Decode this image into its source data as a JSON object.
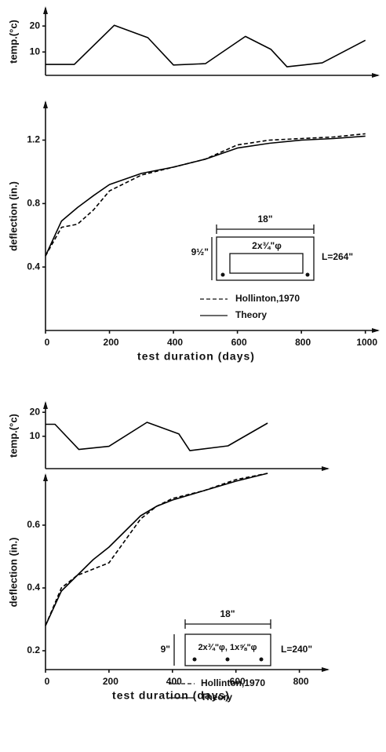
{
  "chart_data": [
    {
      "type": "line",
      "ylabel": "temp.(°c)",
      "x": [
        0,
        90,
        215,
        320,
        400,
        500,
        625,
        705,
        755,
        865,
        1000
      ],
      "values": [
        5.2,
        5.2,
        20.3,
        15.5,
        5,
        5.5,
        16,
        11,
        4.3,
        5.8,
        14.5
      ],
      "color": "#000000",
      "xlim": [
        0,
        1040
      ],
      "ylim": [
        1,
        27
      ],
      "yticks": [
        10,
        20
      ]
    },
    {
      "type": "line",
      "xlabel": "test duration (days)",
      "ylabel": "deflection (in.)",
      "x": [
        0,
        50,
        100,
        150,
        200,
        300,
        400,
        500,
        600,
        700,
        800,
        900,
        1000
      ],
      "series": [
        {
          "name": "Hollinton,1970",
          "color": "#000000",
          "style": "dashed",
          "values": [
            0.47,
            0.65,
            0.67,
            0.76,
            0.88,
            0.98,
            1.03,
            1.08,
            1.17,
            1.2,
            1.21,
            1.22,
            1.24
          ]
        },
        {
          "name": "Theory",
          "color": "#000000",
          "style": "solid",
          "values": [
            0.47,
            0.69,
            0.775,
            0.85,
            0.92,
            0.99,
            1.03,
            1.08,
            1.15,
            1.18,
            1.2,
            1.21,
            1.225
          ]
        }
      ],
      "xlim": [
        0,
        1040
      ],
      "ylim": [
        0,
        1.44
      ],
      "xticks": [
        0,
        200,
        400,
        600,
        800,
        1000
      ],
      "yticks": [
        0.4,
        0.8,
        1.2
      ],
      "annotations": {
        "width": "18\"",
        "depth": "9½\"",
        "bars": "2x¾\"φ",
        "span": "L=264\""
      }
    },
    {
      "type": "line",
      "ylabel": "temp.(°c)",
      "x": [
        0,
        30,
        105,
        200,
        320,
        420,
        455,
        575,
        700
      ],
      "values": [
        15,
        15,
        4.5,
        5.8,
        15.8,
        11,
        4,
        6,
        15.5
      ],
      "color": "#000000",
      "xlim": [
        0,
        890
      ],
      "ylim": [
        -3.5,
        24
      ],
      "yticks": [
        10,
        20
      ]
    },
    {
      "type": "line",
      "xlabel": "test duration (days)",
      "ylabel": "deflection (in.)",
      "x": [
        0,
        50,
        100,
        150,
        200,
        250,
        300,
        350,
        400,
        500,
        600,
        700
      ],
      "series": [
        {
          "name": "Hollinton,1970",
          "color": "#000000",
          "style": "dashed",
          "values": [
            0.28,
            0.4,
            0.44,
            0.46,
            0.48,
            0.55,
            0.62,
            0.66,
            0.685,
            0.71,
            0.745,
            0.765
          ]
        },
        {
          "name": "Theory",
          "color": "#000000",
          "style": "solid",
          "values": [
            0.28,
            0.39,
            0.44,
            0.49,
            0.53,
            0.58,
            0.63,
            0.66,
            0.68,
            0.71,
            0.74,
            0.765
          ]
        }
      ],
      "xlim": [
        0,
        890
      ],
      "ylim": [
        0.14,
        0.76
      ],
      "xticks": [
        0,
        200,
        400,
        600,
        800
      ],
      "yticks": [
        0.2,
        0.4,
        0.6
      ],
      "annotations": {
        "width": "18\"",
        "depth": "9\"",
        "bars": "2x¾\"φ, 1x⅝\"φ",
        "span": "L=240\""
      }
    }
  ]
}
